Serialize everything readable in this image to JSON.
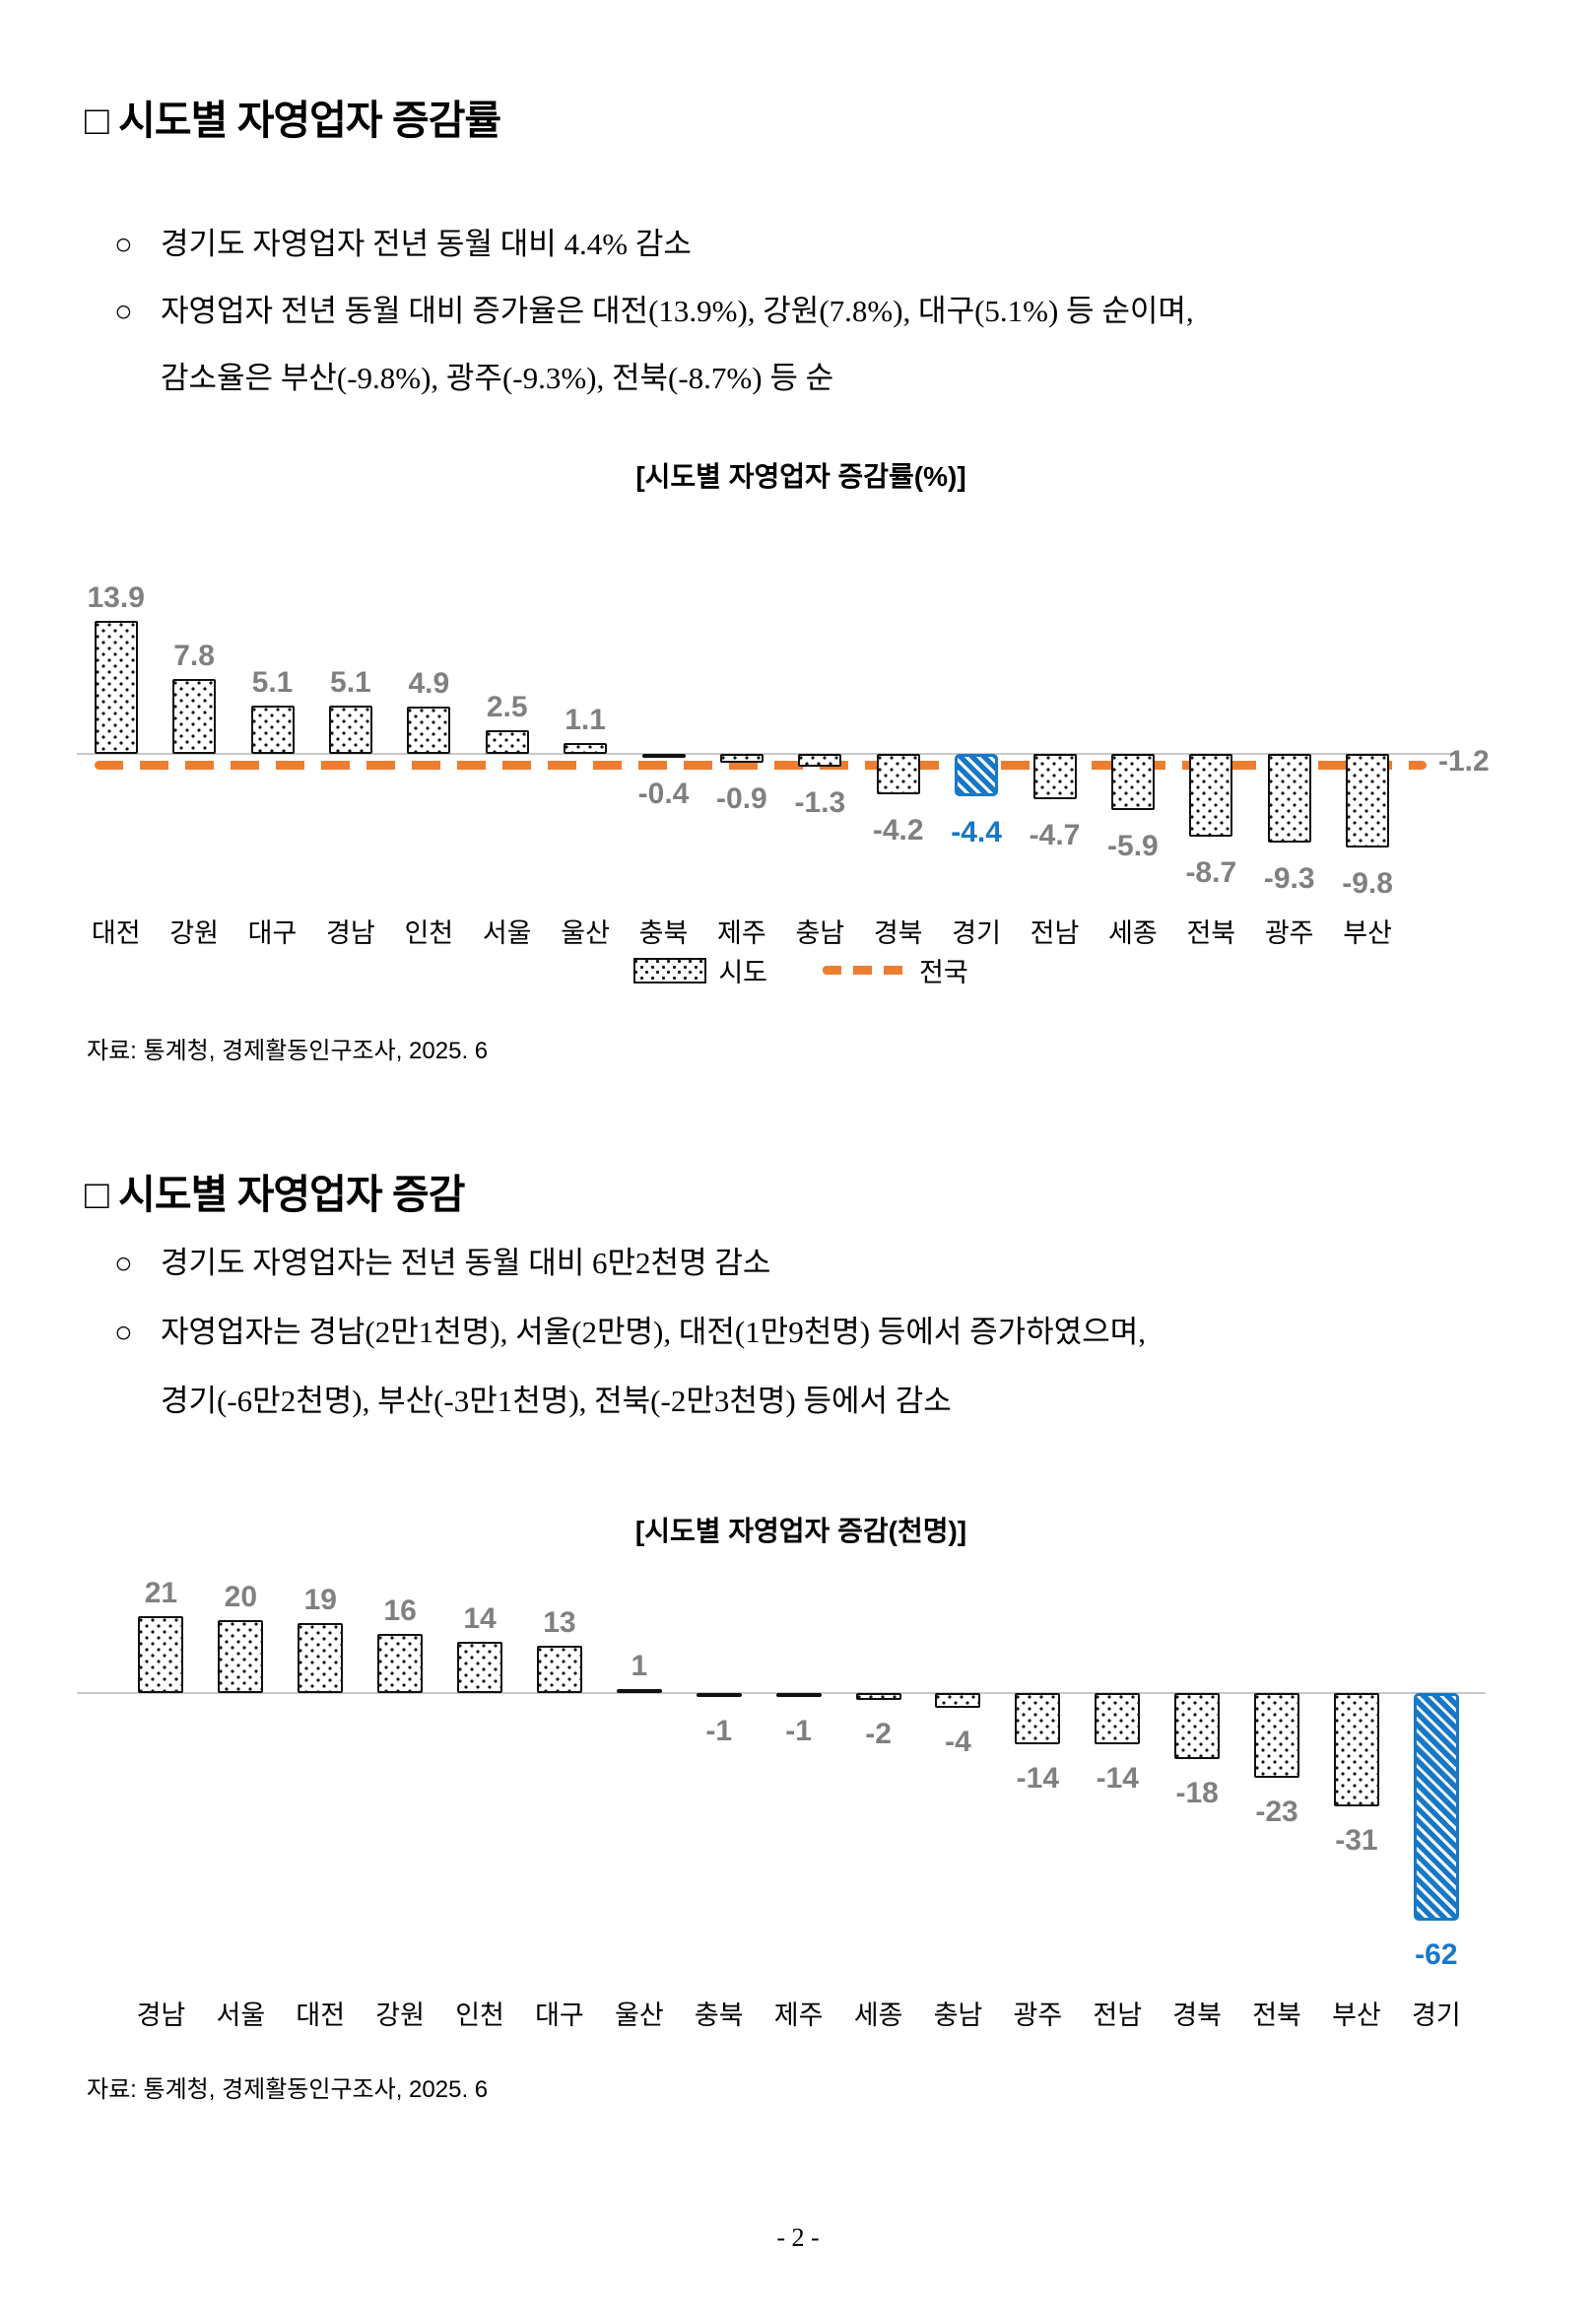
{
  "page": {
    "sections": [
      {
        "heading": "□ 시도별 자영업자 증감률",
        "bullets": [
          {
            "marker": "○",
            "lines": [
              "경기도 자영업자 전년 동월 대비 4.4% 감소"
            ]
          },
          {
            "marker": "○",
            "lines": [
              "자영업자 전년 동월 대비 증가율은 대전(13.9%), 강원(7.8%), 대구(5.1%) 등 순이며,",
              "감소율은 부산(-9.8%), 광주(-9.3%), 전북(-8.7%) 등 순"
            ]
          }
        ],
        "source": "자료: 통계청, 경제활동인구조사, 2025. 6"
      },
      {
        "heading": "□ 시도별 자영업자 증감",
        "bullets": [
          {
            "marker": "○",
            "lines": [
              "경기도 자영업자는 전년 동월 대비 6만2천명 감소"
            ]
          },
          {
            "marker": "○",
            "lines": [
              "자영업자는 경남(2만1천명), 서울(2만명), 대전(1만9천명) 등에서 증가하였으며,",
              "경기(-6만2천명), 부산(-3만1천명), 전북(-2만3천명) 등에서 감소"
            ]
          }
        ],
        "source": "자료: 통계청, 경제활동인구조사, 2025. 6"
      }
    ],
    "page_number": "- 2 -"
  },
  "colors": {
    "highlight_blue": "#1778C8",
    "national_orange": "#ED7D31",
    "label_gray": "#808080"
  },
  "chart_data": [
    {
      "type": "bar",
      "title": "[시도별 자영업자 증감률(%)]",
      "categories": [
        "대전",
        "강원",
        "대구",
        "경남",
        "인천",
        "서울",
        "울산",
        "충북",
        "제주",
        "충남",
        "경북",
        "경기",
        "전남",
        "세종",
        "전북",
        "광주",
        "부산"
      ],
      "values": [
        13.9,
        7.8,
        5.1,
        5.1,
        4.9,
        2.5,
        1.1,
        -0.4,
        -0.9,
        -1.3,
        -4.2,
        -4.4,
        -4.7,
        -5.9,
        -8.7,
        -9.3,
        -9.8
      ],
      "highlight_category": "경기",
      "reference_line": {
        "value": -1.2,
        "label": "-1.2",
        "series_name": "전국"
      },
      "legend": [
        {
          "label": "시도",
          "swatch": "dotted-bar"
        },
        {
          "label": "전국",
          "swatch": "orange-dashes"
        }
      ],
      "legend_position": "bottom",
      "grid": false,
      "xlabel": "",
      "ylabel": "",
      "ylim": [
        -12,
        16
      ]
    },
    {
      "type": "bar",
      "title": "[시도별 자영업자 증감(천명)]",
      "categories": [
        "경남",
        "서울",
        "대전",
        "강원",
        "인천",
        "대구",
        "울산",
        "충북",
        "제주",
        "세종",
        "충남",
        "광주",
        "전남",
        "경북",
        "전북",
        "부산",
        "경기"
      ],
      "values": [
        21,
        20,
        19,
        16,
        14,
        13,
        1,
        -1,
        -1,
        -2,
        -4,
        -14,
        -14,
        -18,
        -23,
        -31,
        -62
      ],
      "highlight_category": "경기",
      "grid": false,
      "xlabel": "",
      "ylabel": "",
      "ylim": [
        -70,
        25
      ]
    }
  ]
}
